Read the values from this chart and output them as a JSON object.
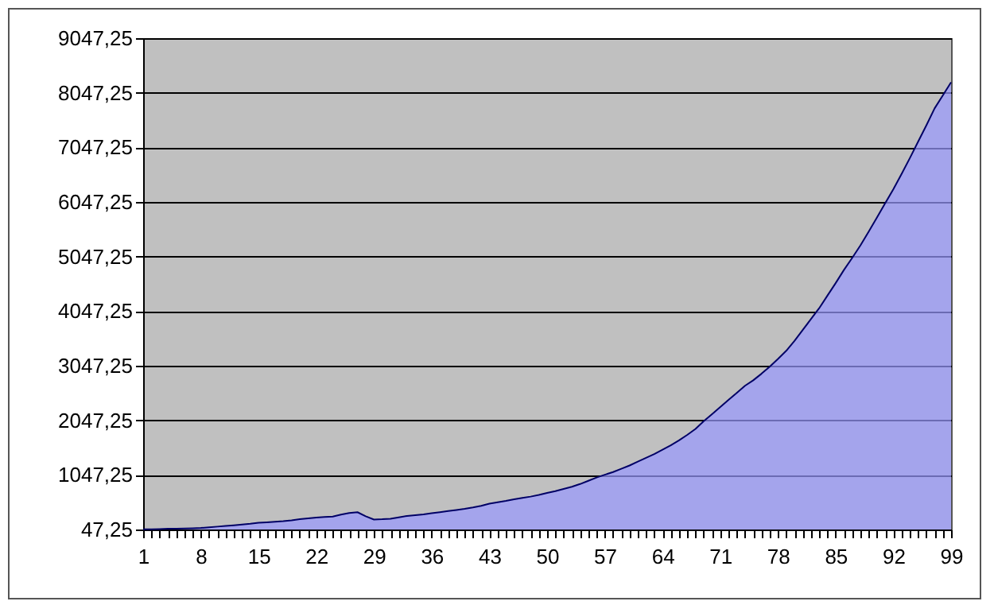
{
  "chart_data": {
    "type": "area",
    "categories": [
      "1",
      null,
      null,
      null,
      null,
      null,
      null,
      "8",
      null,
      null,
      null,
      null,
      null,
      null,
      "15",
      null,
      null,
      null,
      null,
      null,
      null,
      "22",
      null,
      null,
      null,
      null,
      null,
      null,
      "29",
      null,
      null,
      null,
      null,
      null,
      null,
      "36",
      null,
      null,
      null,
      null,
      null,
      null,
      "43",
      null,
      null,
      null,
      null,
      null,
      null,
      "50",
      null,
      null,
      null,
      null,
      null,
      null,
      "57",
      null,
      null,
      null,
      null,
      null,
      null,
      "64",
      null,
      null,
      null,
      null,
      null,
      null,
      "71",
      null,
      null,
      null,
      null,
      null,
      null,
      "78",
      null,
      null,
      null,
      null,
      null,
      null,
      "85",
      null,
      null,
      null,
      null,
      null,
      null,
      "92",
      null,
      null,
      null,
      null,
      null,
      null,
      "99"
    ],
    "series": [
      {
        "color": "#9999ff",
        "values": [
          50,
          52,
          55,
          60,
          63,
          66,
          70,
          75,
          87,
          100,
          112,
          125,
          138,
          152,
          170,
          180,
          190,
          200,
          215,
          235,
          250,
          265,
          275,
          285,
          320,
          350,
          364,
          290,
          230,
          235,
          245,
          270,
          295,
          310,
          325,
          345,
          365,
          385,
          405,
          425,
          450,
          480,
          520,
          545,
          570,
          600,
          625,
          650,
          680,
          717,
          750,
          790,
          830,
          880,
          940,
          1000,
          1050,
          1100,
          1160,
          1220,
          1290,
          1360,
          1430,
          1510,
          1590,
          1680,
          1780,
          1890,
          2030,
          2160,
          2290,
          2420,
          2550,
          2680,
          2780,
          2900,
          3030,
          3170,
          3320,
          3500,
          3700,
          3900,
          4100,
          4330,
          4560,
          4800,
          5020,
          5250,
          5500,
          5760,
          6020,
          6280,
          6560,
          6850,
          7150,
          7450,
          7760,
          8000,
          8240
        ]
      }
    ],
    "ylim": [
      47.25,
      9047.25
    ],
    "yticks": [
      {
        "value": 47.25,
        "label": "47,25"
      },
      {
        "value": 1047.25,
        "label": "1047,25"
      },
      {
        "value": 2047.25,
        "label": "2047,25"
      },
      {
        "value": 3047.25,
        "label": "3047,25"
      },
      {
        "value": 4047.25,
        "label": "4047,25"
      },
      {
        "value": 5047.25,
        "label": "5047,25"
      },
      {
        "value": 6047.25,
        "label": "6047,25"
      },
      {
        "value": 7047.25,
        "label": "7047,25"
      },
      {
        "value": 8047.25,
        "label": "8047,25"
      },
      {
        "value": 9047.25,
        "label": "9047,25"
      }
    ],
    "grid": "y"
  }
}
